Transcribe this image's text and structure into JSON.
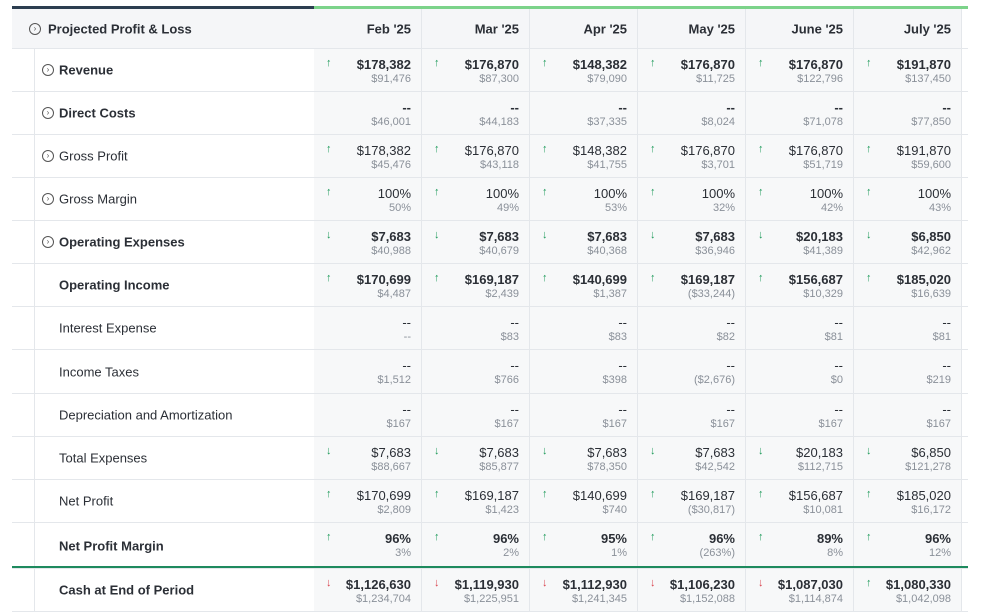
{
  "header": {
    "title": "Projected Profit & Loss",
    "months": [
      "Feb '25",
      "Mar '25",
      "Apr '25",
      "May '25",
      "June '25",
      "July '25"
    ]
  },
  "rows": [
    {
      "name": "row-revenue",
      "label": "Revenue",
      "bold": true,
      "expander": true,
      "cells": [
        {
          "arrow": "up",
          "main": "$178,382",
          "sub": "$91,476"
        },
        {
          "arrow": "up",
          "main": "$176,870",
          "sub": "$87,300"
        },
        {
          "arrow": "up",
          "main": "$148,382",
          "sub": "$79,090"
        },
        {
          "arrow": "up",
          "main": "$176,870",
          "sub": "$11,725"
        },
        {
          "arrow": "up",
          "main": "$176,870",
          "sub": "$122,796"
        },
        {
          "arrow": "up",
          "main": "$191,870",
          "sub": "$137,450"
        }
      ]
    },
    {
      "name": "row-direct-costs",
      "label": "Direct Costs",
      "bold": true,
      "expander": true,
      "cells": [
        {
          "arrow": "",
          "main": "--",
          "sub": "$46,001"
        },
        {
          "arrow": "",
          "main": "--",
          "sub": "$44,183"
        },
        {
          "arrow": "",
          "main": "--",
          "sub": "$37,335"
        },
        {
          "arrow": "",
          "main": "--",
          "sub": "$8,024"
        },
        {
          "arrow": "",
          "main": "--",
          "sub": "$71,078"
        },
        {
          "arrow": "",
          "main": "--",
          "sub": "$77,850"
        }
      ]
    },
    {
      "name": "row-gross-profit",
      "label": "Gross Profit",
      "bold": false,
      "expander": true,
      "cells": [
        {
          "arrow": "up",
          "main": "$178,382",
          "sub": "$45,476"
        },
        {
          "arrow": "up",
          "main": "$176,870",
          "sub": "$43,118"
        },
        {
          "arrow": "up",
          "main": "$148,382",
          "sub": "$41,755"
        },
        {
          "arrow": "up",
          "main": "$176,870",
          "sub": "$3,701"
        },
        {
          "arrow": "up",
          "main": "$176,870",
          "sub": "$51,719"
        },
        {
          "arrow": "up",
          "main": "$191,870",
          "sub": "$59,600"
        }
      ]
    },
    {
      "name": "row-gross-margin",
      "label": "Gross Margin",
      "bold": false,
      "expander": true,
      "cells": [
        {
          "arrow": "up",
          "main": "100%",
          "sub": "50%"
        },
        {
          "arrow": "up",
          "main": "100%",
          "sub": "49%"
        },
        {
          "arrow": "up",
          "main": "100%",
          "sub": "53%"
        },
        {
          "arrow": "up",
          "main": "100%",
          "sub": "32%"
        },
        {
          "arrow": "up",
          "main": "100%",
          "sub": "42%"
        },
        {
          "arrow": "up",
          "main": "100%",
          "sub": "43%"
        }
      ]
    },
    {
      "name": "row-operating-expenses",
      "label": "Operating Expenses",
      "bold": true,
      "expander": true,
      "cells": [
        {
          "arrow": "down",
          "main": "$7,683",
          "sub": "$40,988"
        },
        {
          "arrow": "down",
          "main": "$7,683",
          "sub": "$40,679"
        },
        {
          "arrow": "down",
          "main": "$7,683",
          "sub": "$40,368"
        },
        {
          "arrow": "down",
          "main": "$7,683",
          "sub": "$36,946"
        },
        {
          "arrow": "down",
          "main": "$20,183",
          "sub": "$41,389"
        },
        {
          "arrow": "down",
          "main": "$6,850",
          "sub": "$42,962"
        }
      ]
    },
    {
      "name": "row-operating-income",
      "label": "Operating Income",
      "bold": true,
      "expander": false,
      "cells": [
        {
          "arrow": "up",
          "main": "$170,699",
          "sub": "$4,487"
        },
        {
          "arrow": "up",
          "main": "$169,187",
          "sub": "$2,439"
        },
        {
          "arrow": "up",
          "main": "$140,699",
          "sub": "$1,387"
        },
        {
          "arrow": "up",
          "main": "$169,187",
          "sub": "($33,244)"
        },
        {
          "arrow": "up",
          "main": "$156,687",
          "sub": "$10,329"
        },
        {
          "arrow": "up",
          "main": "$185,020",
          "sub": "$16,639"
        }
      ]
    },
    {
      "name": "row-interest-expense",
      "label": "Interest Expense",
      "bold": false,
      "expander": false,
      "cells": [
        {
          "arrow": "",
          "main": "--",
          "sub": "--"
        },
        {
          "arrow": "",
          "main": "--",
          "sub": "$83"
        },
        {
          "arrow": "",
          "main": "--",
          "sub": "$83"
        },
        {
          "arrow": "",
          "main": "--",
          "sub": "$82"
        },
        {
          "arrow": "",
          "main": "--",
          "sub": "$81"
        },
        {
          "arrow": "",
          "main": "--",
          "sub": "$81"
        }
      ]
    },
    {
      "name": "row-income-taxes",
      "label": "Income Taxes",
      "bold": false,
      "expander": false,
      "cells": [
        {
          "arrow": "",
          "main": "--",
          "sub": "$1,512"
        },
        {
          "arrow": "",
          "main": "--",
          "sub": "$766"
        },
        {
          "arrow": "",
          "main": "--",
          "sub": "$398"
        },
        {
          "arrow": "",
          "main": "--",
          "sub": "($2,676)"
        },
        {
          "arrow": "",
          "main": "--",
          "sub": "$0"
        },
        {
          "arrow": "",
          "main": "--",
          "sub": "$219"
        }
      ]
    },
    {
      "name": "row-depreciation",
      "label": "Depreciation and Amortization",
      "bold": false,
      "expander": false,
      "cells": [
        {
          "arrow": "",
          "main": "--",
          "sub": "$167"
        },
        {
          "arrow": "",
          "main": "--",
          "sub": "$167"
        },
        {
          "arrow": "",
          "main": "--",
          "sub": "$167"
        },
        {
          "arrow": "",
          "main": "--",
          "sub": "$167"
        },
        {
          "arrow": "",
          "main": "--",
          "sub": "$167"
        },
        {
          "arrow": "",
          "main": "--",
          "sub": "$167"
        }
      ]
    },
    {
      "name": "row-total-expenses",
      "label": "Total Expenses",
      "bold": false,
      "expander": false,
      "cells": [
        {
          "arrow": "down",
          "main": "$7,683",
          "sub": "$88,667"
        },
        {
          "arrow": "down",
          "main": "$7,683",
          "sub": "$85,877"
        },
        {
          "arrow": "down",
          "main": "$7,683",
          "sub": "$78,350"
        },
        {
          "arrow": "down",
          "main": "$7,683",
          "sub": "$42,542"
        },
        {
          "arrow": "down",
          "main": "$20,183",
          "sub": "$112,715"
        },
        {
          "arrow": "down",
          "main": "$6,850",
          "sub": "$121,278"
        }
      ]
    },
    {
      "name": "row-net-profit",
      "label": "Net Profit",
      "bold": false,
      "expander": false,
      "cells": [
        {
          "arrow": "up",
          "main": "$170,699",
          "sub": "$2,809"
        },
        {
          "arrow": "up",
          "main": "$169,187",
          "sub": "$1,423"
        },
        {
          "arrow": "up",
          "main": "$140,699",
          "sub": "$740"
        },
        {
          "arrow": "up",
          "main": "$169,187",
          "sub": "($30,817)"
        },
        {
          "arrow": "up",
          "main": "$156,687",
          "sub": "$10,081"
        },
        {
          "arrow": "up",
          "main": "$185,020",
          "sub": "$16,172"
        }
      ]
    },
    {
      "name": "row-net-profit-margin",
      "label": "Net Profit Margin",
      "bold": true,
      "expander": false,
      "cells": [
        {
          "arrow": "up",
          "main": "96%",
          "sub": "3%"
        },
        {
          "arrow": "up",
          "main": "96%",
          "sub": "2%"
        },
        {
          "arrow": "up",
          "main": "95%",
          "sub": "1%"
        },
        {
          "arrow": "up",
          "main": "96%",
          "sub": "(263%)"
        },
        {
          "arrow": "up",
          "main": "89%",
          "sub": "8%"
        },
        {
          "arrow": "up",
          "main": "96%",
          "sub": "12%"
        }
      ]
    },
    {
      "name": "row-cash-end-of-period",
      "label": "Cash at End of Period",
      "bold": true,
      "expander": false,
      "cells": [
        {
          "arrow": "down-red",
          "main": "$1,126,630",
          "sub": "$1,234,704"
        },
        {
          "arrow": "down-red",
          "main": "$1,119,930",
          "sub": "$1,225,951"
        },
        {
          "arrow": "down-red",
          "main": "$1,112,930",
          "sub": "$1,241,345"
        },
        {
          "arrow": "down-red",
          "main": "$1,106,230",
          "sub": "$1,152,088"
        },
        {
          "arrow": "down-red",
          "main": "$1,087,030",
          "sub": "$1,114,874"
        },
        {
          "arrow": "up",
          "main": "$1,080,330",
          "sub": "$1,042,098"
        }
      ]
    }
  ],
  "colors": {
    "up": "#1e9a5a",
    "down": "#1e9a5a",
    "down-red": "#d9434e",
    "accent": "#7cd38a"
  }
}
